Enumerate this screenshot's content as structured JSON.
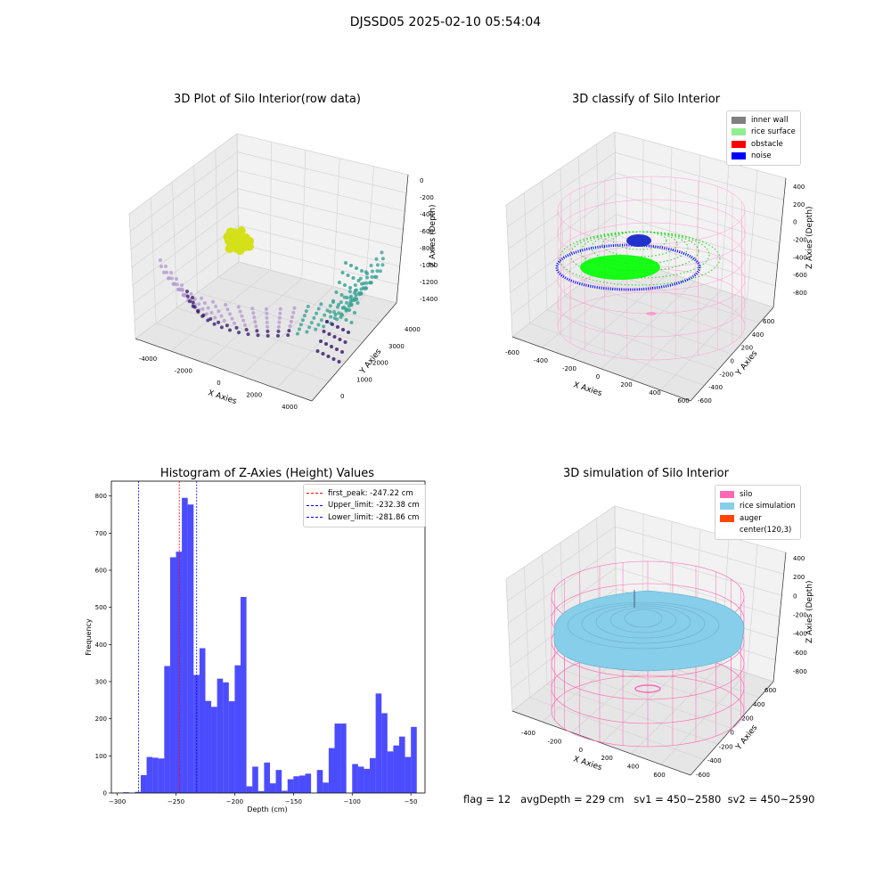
{
  "figure": {
    "suptitle": "DJSSD05 2025-02-10 05:54:04",
    "footer": "flag = 12   avgDepth = 229 cm   sv1 = 450~2580  sv2 = 450~2590"
  },
  "chart_data": [
    {
      "type": "scatter",
      "projection": "3d",
      "title": "3D Plot of Silo Interior(row data)",
      "xlabel": "X Axies",
      "ylabel": "Y Axies",
      "zlabel": "Z Axies (Depth)",
      "xticks": [
        "-4000",
        "-2000",
        "0",
        "2000",
        "4000"
      ],
      "yticks": [
        "0",
        "1000",
        "2000",
        "3000",
        "4000"
      ],
      "zticks": [
        "0",
        "-200",
        "-400",
        "-600",
        "-800",
        "-1000",
        "-1200",
        "-1400"
      ],
      "colormap": "viridis",
      "grid": true,
      "colors": {
        "outer": "#b59bd0",
        "mid": "#3aa395",
        "deep": "#3b1f6e",
        "peak": "#d4e01a"
      }
    },
    {
      "type": "scatter",
      "projection": "3d",
      "title": "3D classify of Silo Interior",
      "xlabel": "X Axies",
      "ylabel": "Y Axies",
      "zlabel": "Z Axies (Depth)",
      "xticks": [
        "-600",
        "-400",
        "-200",
        "0",
        "200",
        "400",
        "600"
      ],
      "yticks": [
        "-600",
        "-400",
        "-200",
        "0",
        "200",
        "400",
        "600"
      ],
      "zticks": [
        "400",
        "200",
        "0",
        "-200",
        "-400",
        "-600",
        "-800"
      ],
      "legend": [
        {
          "label": "inner wall",
          "color": "#808080"
        },
        {
          "label": "rice surface",
          "color": "#90ee90"
        },
        {
          "label": "obstacle",
          "color": "#ff0000"
        },
        {
          "label": "noise",
          "color": "#0000ff"
        }
      ],
      "legend_position": "top-right",
      "grid": true
    },
    {
      "type": "bar",
      "title": "Histogram of Z-Axies (Height) Values",
      "xlabel": "Depth (cm)",
      "ylabel": "Frequency",
      "xlim": [
        -305,
        -38
      ],
      "ylim": [
        0,
        840
      ],
      "xticks": [
        -300,
        -250,
        -200,
        -150,
        -100,
        -50
      ],
      "yticks": [
        0,
        100,
        200,
        300,
        400,
        500,
        600,
        700,
        800
      ],
      "bin_start": -300,
      "bin_width": 5,
      "values": [
        0,
        2,
        0,
        3,
        48,
        97,
        95,
        93,
        342,
        635,
        650,
        795,
        777,
        318,
        390,
        248,
        232,
        308,
        298,
        247,
        344,
        528,
        18,
        71,
        5,
        82,
        26,
        62,
        6,
        37,
        45,
        47,
        52,
        0,
        62,
        28,
        121,
        187,
        187,
        0,
        78,
        71,
        65,
        94,
        268,
        215,
        112,
        128,
        152,
        97,
        178
      ],
      "bar_color": "#0000ff",
      "lines": [
        {
          "label": "first_peak: -247.22 cm",
          "x": -247.22,
          "color": "#ff0000"
        },
        {
          "label": "Upper_limit: -232.38 cm",
          "x": -232.38,
          "color": "#0000ff"
        },
        {
          "label": "Lower_limit: -281.86 cm",
          "x": -281.86,
          "color": "#0000ff"
        }
      ],
      "legend_position": "top-right"
    },
    {
      "type": "surface",
      "projection": "3d",
      "title": "3D simulation of Silo Interior",
      "xlabel": "X Axies",
      "ylabel": "Y Axies",
      "zlabel": "Z Axies (Depth)",
      "xticks": [
        "-400",
        "-200",
        "0",
        "200",
        "400",
        "600"
      ],
      "yticks": [
        "-600",
        "-400",
        "-200",
        "0",
        "200",
        "400",
        "600"
      ],
      "zticks": [
        "400",
        "200",
        "0",
        "-200",
        "-400",
        "-600",
        "-800"
      ],
      "legend": [
        {
          "label": "silo",
          "color": "#ff69b4"
        },
        {
          "label": "rice simulation",
          "color": "#87ceeb"
        },
        {
          "label": "auger",
          "color": "#ff4500"
        },
        {
          "label": "center(120,3)",
          "color": ""
        }
      ],
      "legend_position": "top-right",
      "grid": true
    }
  ]
}
